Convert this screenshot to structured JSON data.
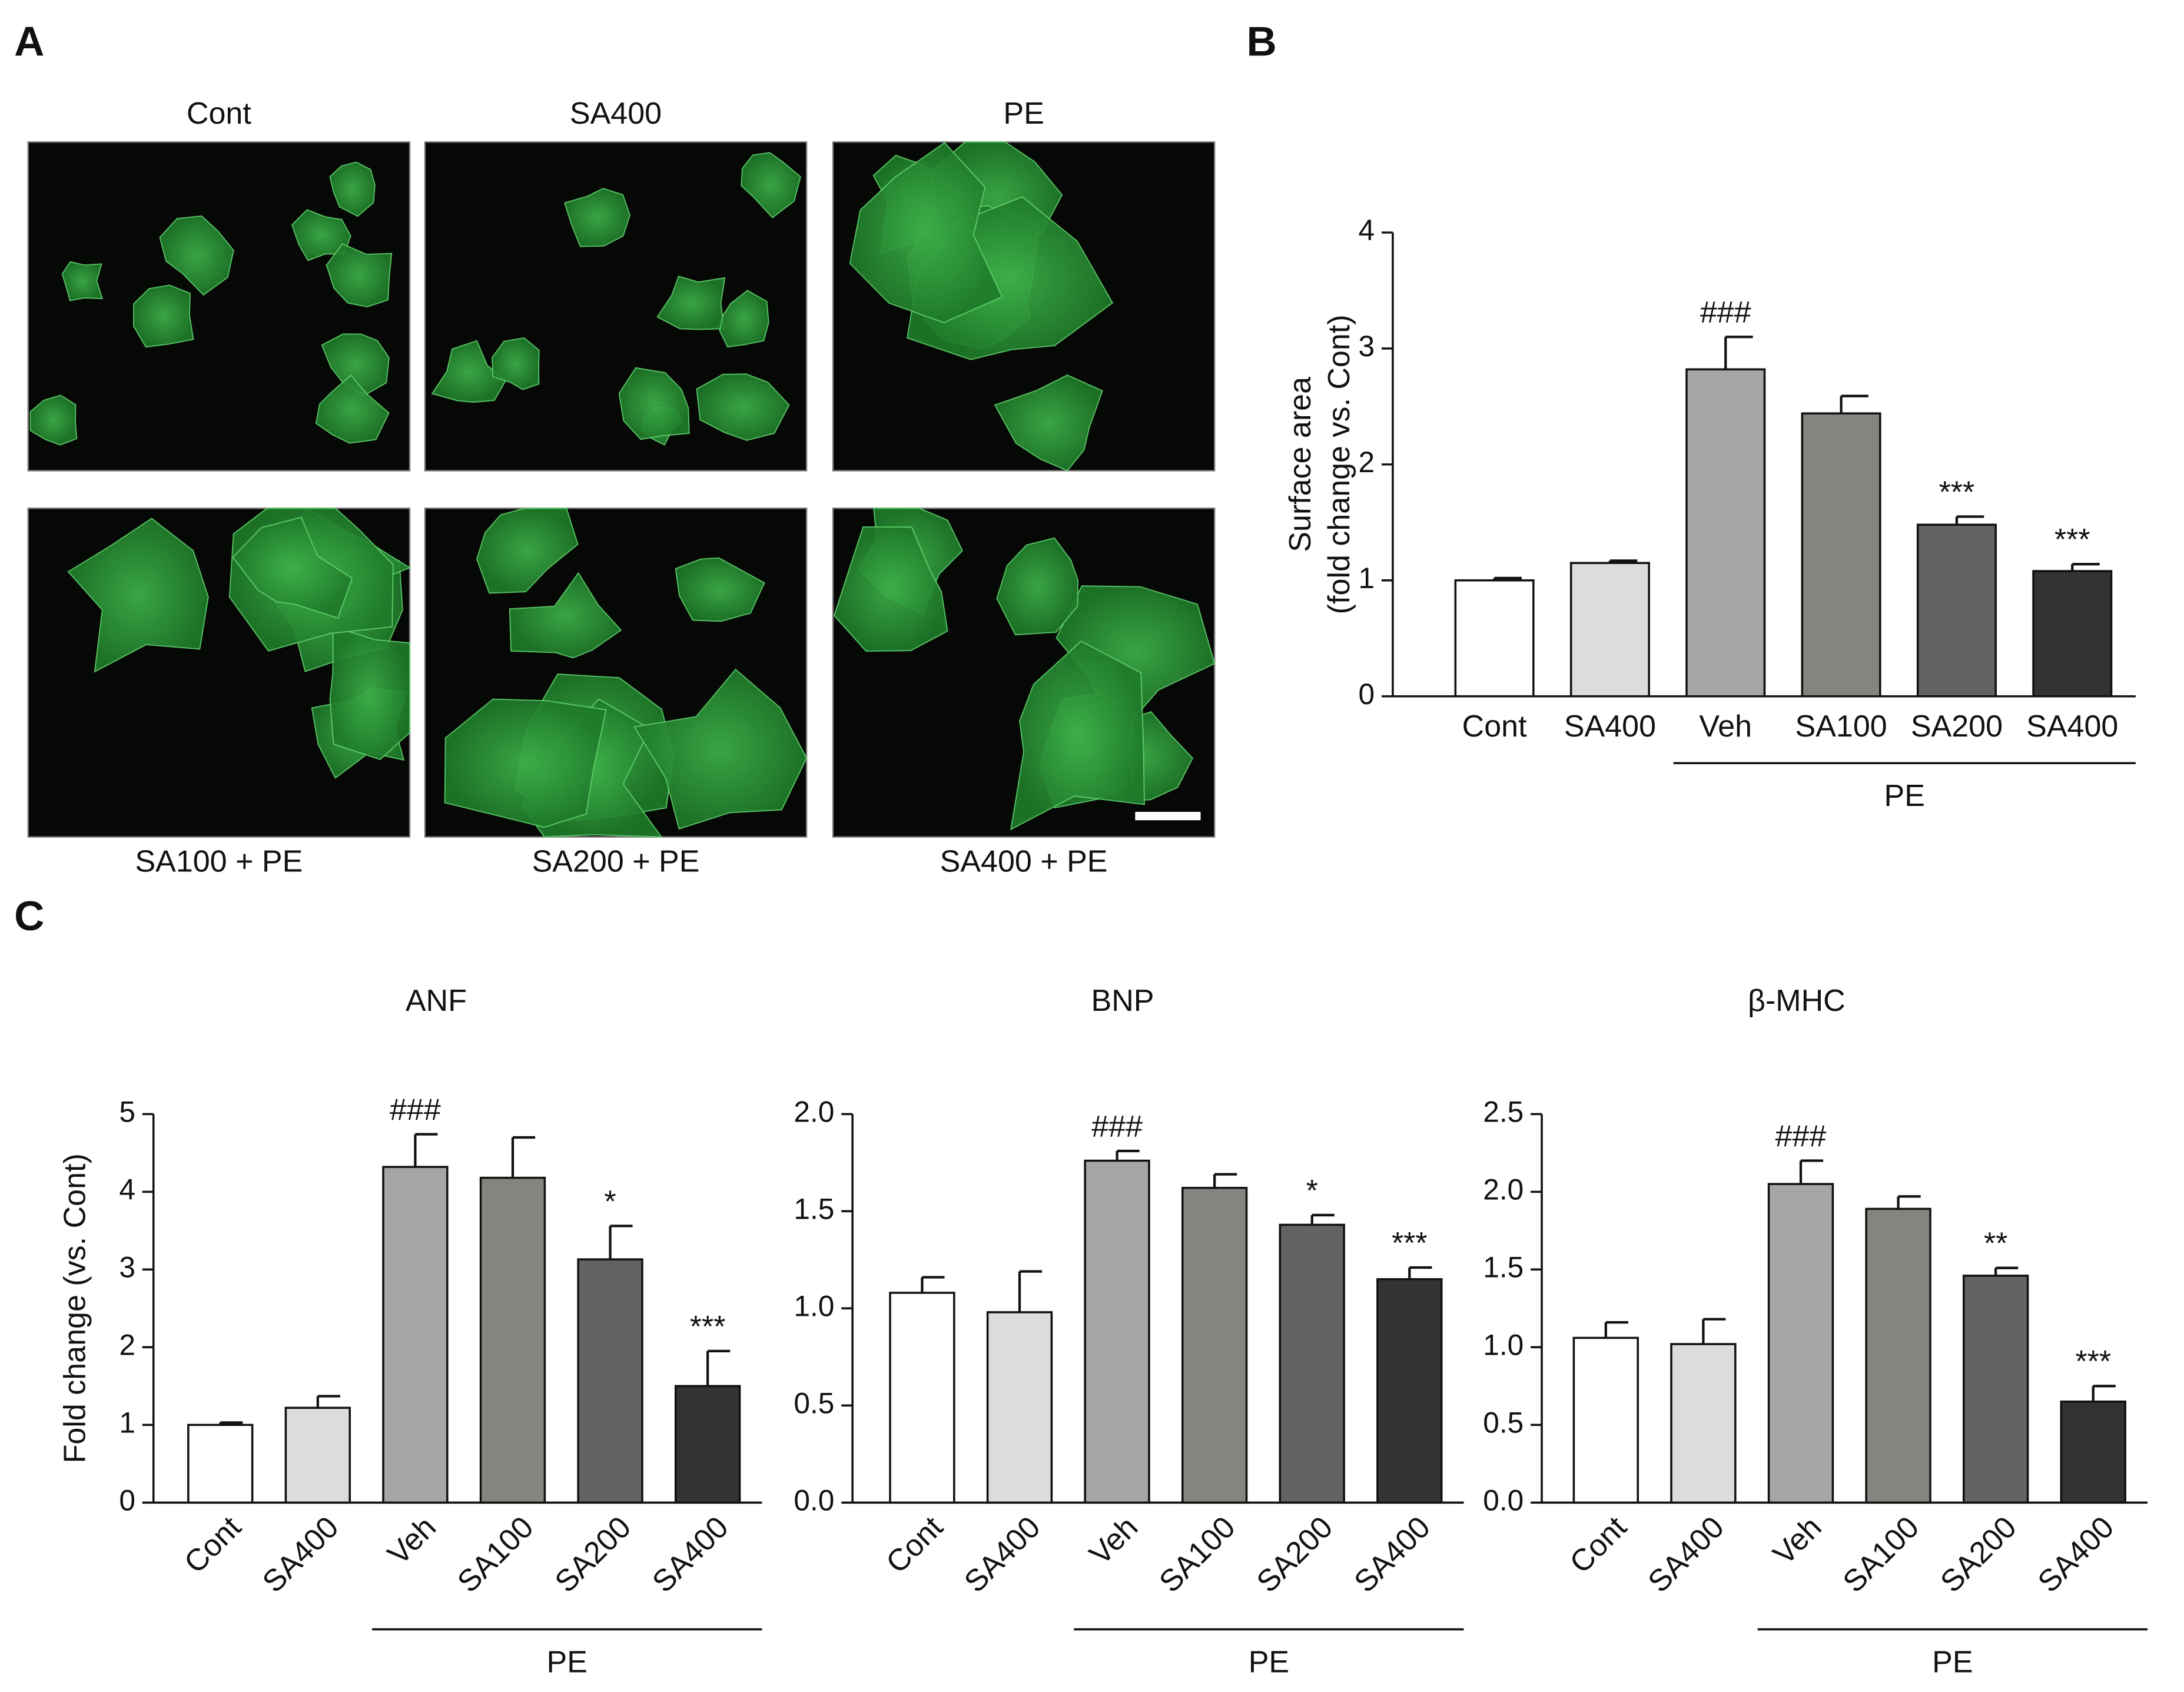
{
  "panel_labels": [
    "A",
    "B",
    "C"
  ],
  "images": {
    "top_labels": [
      "Cont",
      "SA400",
      "PE"
    ],
    "bottom_labels": [
      "SA100 + PE",
      "SA200 + PE",
      "SA400 + PE"
    ]
  },
  "chart_data": [
    {
      "type": "bar",
      "ylabel": [
        "Surface area",
        "(fold change vs. Cont)"
      ],
      "categories": [
        "Cont",
        "SA400",
        "Veh",
        "SA100",
        "SA200",
        "SA400"
      ],
      "category_groups": [
        null,
        null,
        "PE",
        "PE",
        "PE",
        "PE"
      ],
      "values": [
        1.0,
        1.15,
        2.82,
        2.44,
        1.48,
        1.08
      ],
      "errors": [
        0.02,
        0.02,
        0.28,
        0.15,
        0.07,
        0.06
      ],
      "annotations": [
        null,
        null,
        "###",
        null,
        "***",
        "***"
      ],
      "colors": [
        "#ffffff",
        "#dcdcdc",
        "#a6a6a6",
        "#858580",
        "#636363",
        "#333333"
      ],
      "ylim": [
        0,
        4
      ],
      "yticks": [
        0,
        1,
        2,
        3,
        4
      ]
    },
    {
      "type": "bar",
      "title": "ANF",
      "ylabel": "Fold change (vs. Cont)",
      "categories": [
        "Cont",
        "SA400",
        "Veh",
        "SA100",
        "SA200",
        "SA400"
      ],
      "category_groups": [
        null,
        null,
        "PE",
        "PE",
        "PE",
        "PE"
      ],
      "values": [
        1.0,
        1.22,
        4.32,
        4.18,
        3.13,
        1.5
      ],
      "errors": [
        0.03,
        0.15,
        0.42,
        0.52,
        0.43,
        0.45
      ],
      "annotations": [
        null,
        null,
        "###",
        null,
        "*",
        "***"
      ],
      "colors": [
        "#ffffff",
        "#dcdcdc",
        "#a6a6a6",
        "#858580",
        "#636363",
        "#333333"
      ],
      "ylim": [
        0,
        5
      ],
      "yticks": [
        0,
        1,
        2,
        3,
        4,
        5
      ]
    },
    {
      "type": "bar",
      "title": "BNP",
      "categories": [
        "Cont",
        "SA400",
        "Veh",
        "SA100",
        "SA200",
        "SA400"
      ],
      "category_groups": [
        null,
        null,
        "PE",
        "PE",
        "PE",
        "PE"
      ],
      "values": [
        1.08,
        0.98,
        1.76,
        1.62,
        1.43,
        1.15
      ],
      "errors": [
        0.08,
        0.21,
        0.05,
        0.07,
        0.05,
        0.06
      ],
      "annotations": [
        null,
        null,
        "###",
        null,
        "*",
        "***"
      ],
      "colors": [
        "#ffffff",
        "#dcdcdc",
        "#a6a6a6",
        "#858580",
        "#636363",
        "#333333"
      ],
      "ylim": [
        0,
        2.0
      ],
      "yticks": [
        {
          "value": 0,
          "label": "0.0"
        },
        0.5,
        {
          "value": 1,
          "label": "1.0"
        },
        1.5,
        {
          "value": 2,
          "label": "2.0"
        }
      ]
    },
    {
      "type": "bar",
      "title": "β-MHC",
      "categories": [
        "Cont",
        "SA400",
        "Veh",
        "SA100",
        "SA200",
        "SA400"
      ],
      "category_groups": [
        null,
        null,
        "PE",
        "PE",
        "PE",
        "PE"
      ],
      "values": [
        1.06,
        1.02,
        2.05,
        1.89,
        1.46,
        0.65
      ],
      "errors": [
        0.1,
        0.16,
        0.15,
        0.08,
        0.05,
        0.1
      ],
      "annotations": [
        null,
        null,
        "###",
        null,
        "**",
        "***"
      ],
      "colors": [
        "#ffffff",
        "#dcdcdc",
        "#a6a6a6",
        "#858580",
        "#636363",
        "#333333"
      ],
      "ylim": [
        0,
        2.5
      ],
      "yticks": [
        {
          "value": 0,
          "label": "0.0"
        },
        0.5,
        {
          "value": 1,
          "label": "1.0"
        },
        1.5,
        {
          "value": 2,
          "label": "2.0"
        },
        2.5
      ]
    }
  ]
}
